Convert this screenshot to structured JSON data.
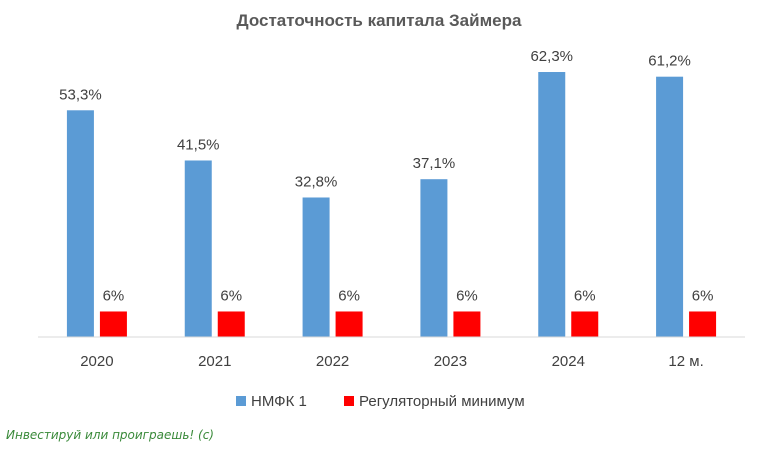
{
  "chart_data": {
    "type": "bar",
    "title": "Достаточность капитала Займера",
    "categories": [
      "2020",
      "2021",
      "2022",
      "2023",
      "2024",
      "12 м."
    ],
    "series": [
      {
        "name": "НМФК 1",
        "color": "#5B9BD5",
        "values": [
          53.3,
          41.5,
          32.8,
          37.1,
          62.3,
          61.2
        ],
        "labels": [
          "53,3%",
          "41,5%",
          "32,8%",
          "37,1%",
          "62,3%",
          "61,2%"
        ]
      },
      {
        "name": "Регуляторный минимум",
        "color": "#FF0000",
        "values": [
          6,
          6,
          6,
          6,
          6,
          6
        ],
        "labels": [
          "6%",
          "6%",
          "6%",
          "6%",
          "6%",
          "6%"
        ]
      }
    ],
    "ylim": [
      0,
      66.3
    ],
    "grid": false,
    "legend_position": "bottom"
  },
  "watermark": "Инвестируй или проиграешь! (с)"
}
